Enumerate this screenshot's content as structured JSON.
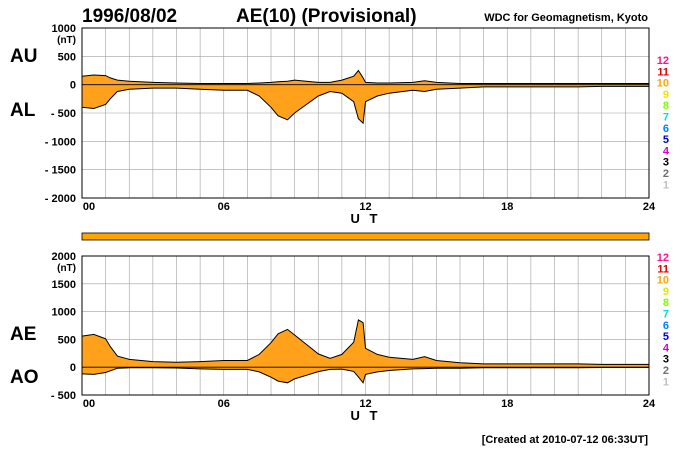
{
  "header": {
    "date": "1996/08/02",
    "title": "AE(10) (Provisional)",
    "source": "WDC for Geomagnetism, Kyoto"
  },
  "footer": {
    "created": "[Created at 2010-07-12 06:33UT]"
  },
  "station_scale": {
    "labels": [
      "12",
      "11",
      "10",
      "9",
      "8",
      "7",
      "6",
      "5",
      "4",
      "3",
      "2",
      "1"
    ],
    "colors": [
      "#ff1493",
      "#e00000",
      "#ffa500",
      "#e8e800",
      "#80ff00",
      "#00e0e0",
      "#0080ff",
      "#0000d0",
      "#d000d0",
      "#000000",
      "#707070",
      "#c0c0c0"
    ]
  },
  "colors": {
    "fill": "#ffa11a",
    "line": "#000000",
    "grid": "#a0a0a0",
    "bar": "#ffa500"
  },
  "chart_data": [
    {
      "type": "area",
      "ylabel": "(nT)",
      "xlabel": "U T",
      "side_labels": [
        "AU",
        "AL"
      ],
      "ylim": [
        -2000,
        1000
      ],
      "yticks": [
        1000,
        500,
        0,
        -500,
        -1000,
        -1500,
        -2000
      ],
      "ytick_labels": [
        "1000",
        "500",
        "0",
        "- 500",
        "- 1000",
        "- 1500",
        "- 2000"
      ],
      "xlim": [
        0,
        24
      ],
      "xticks": [
        0,
        6,
        12,
        18,
        24
      ],
      "xtick_labels": [
        "00",
        "06",
        "12",
        "18",
        "24"
      ],
      "grid": true,
      "x": [
        0,
        0.5,
        1,
        1.2,
        1.5,
        2,
        3,
        4,
        5,
        6,
        7,
        7.5,
        8,
        8.3,
        8.7,
        9,
        9.5,
        10,
        10.5,
        11,
        11.5,
        11.7,
        11.9,
        12,
        12.5,
        13,
        14,
        14.5,
        15,
        16,
        17,
        18,
        19,
        20,
        21,
        22,
        23,
        24
      ],
      "series": [
        {
          "values": [
            150,
            170,
            160,
            120,
            80,
            60,
            40,
            30,
            20,
            20,
            20,
            30,
            40,
            50,
            60,
            80,
            60,
            40,
            40,
            80,
            150,
            250,
            120,
            40,
            30,
            30,
            40,
            70,
            40,
            20,
            20,
            20,
            20,
            20,
            20,
            20,
            20,
            20
          ]
        },
        {
          "values": [
            -400,
            -420,
            -350,
            -250,
            -120,
            -80,
            -60,
            -60,
            -80,
            -100,
            -100,
            -200,
            -400,
            -550,
            -620,
            -500,
            -350,
            -200,
            -120,
            -150,
            -300,
            -600,
            -680,
            -300,
            -200,
            -150,
            -100,
            -120,
            -80,
            -60,
            -40,
            -40,
            -40,
            -40,
            -40,
            -30,
            -30,
            -30
          ]
        }
      ]
    },
    {
      "type": "area",
      "ylabel": "(nT)",
      "xlabel": "U T",
      "side_labels": [
        "AE",
        "AO"
      ],
      "ylim": [
        -500,
        2000
      ],
      "yticks": [
        2000,
        1500,
        1000,
        500,
        0,
        -500
      ],
      "ytick_labels": [
        "2000",
        "1500",
        "1000",
        "500",
        "0",
        "- 500"
      ],
      "xlim": [
        0,
        24
      ],
      "xticks": [
        0,
        6,
        12,
        18,
        24
      ],
      "xtick_labels": [
        "00",
        "06",
        "12",
        "18",
        "24"
      ],
      "grid": true,
      "x": [
        0,
        0.5,
        1,
        1.2,
        1.5,
        2,
        3,
        4,
        5,
        6,
        7,
        7.5,
        8,
        8.3,
        8.7,
        9,
        9.5,
        10,
        10.5,
        11,
        11.5,
        11.7,
        11.9,
        12,
        12.5,
        13,
        14,
        14.5,
        15,
        16,
        17,
        18,
        19,
        20,
        21,
        22,
        23,
        24
      ],
      "series": [
        {
          "values": [
            560,
            590,
            510,
            370,
            200,
            140,
            100,
            90,
            100,
            120,
            120,
            230,
            440,
            600,
            680,
            580,
            410,
            240,
            160,
            230,
            450,
            850,
            800,
            340,
            230,
            180,
            140,
            190,
            120,
            80,
            60,
            60,
            60,
            60,
            60,
            50,
            50,
            50
          ]
        },
        {
          "values": [
            -120,
            -130,
            -95,
            -65,
            -20,
            -10,
            -10,
            -15,
            -30,
            -40,
            -40,
            -85,
            -180,
            -250,
            -280,
            -210,
            -145,
            -80,
            -40,
            -35,
            -75,
            -175,
            -280,
            -130,
            -85,
            -60,
            -30,
            -25,
            -20,
            -20,
            -10,
            -10,
            -10,
            -10,
            -10,
            -5,
            -5,
            -5
          ]
        }
      ]
    }
  ]
}
